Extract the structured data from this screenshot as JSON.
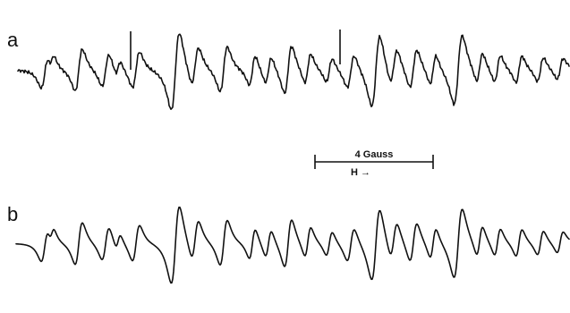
{
  "panels": [
    {
      "label": "a"
    },
    {
      "label": "b"
    }
  ],
  "scale_bar": {
    "label": "4 Gauss",
    "field_label": "H →"
  }
}
